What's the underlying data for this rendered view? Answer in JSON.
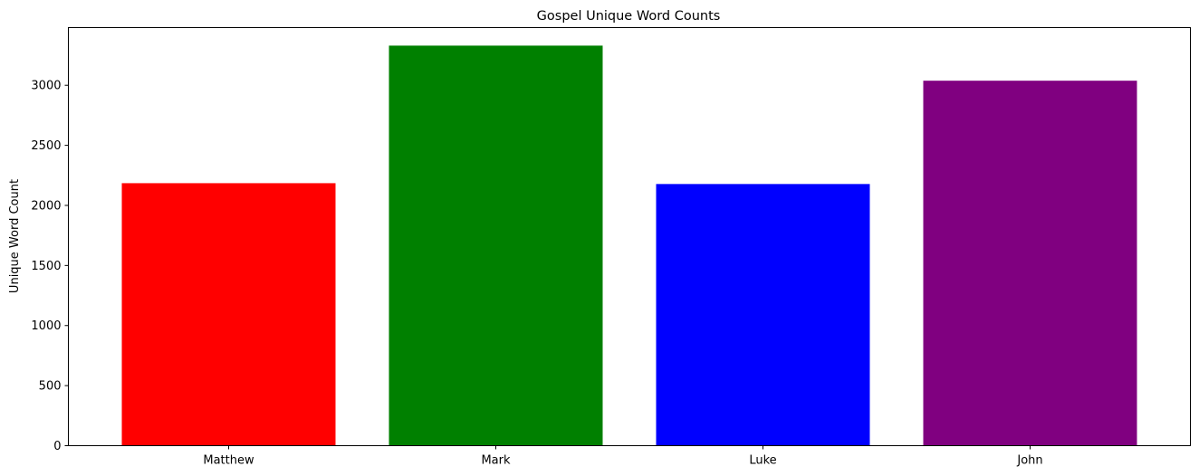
{
  "chart_data": {
    "type": "bar",
    "title": "Gospel Unique Word Counts",
    "xlabel": "",
    "ylabel": "Unique Word Count",
    "categories": [
      "Matthew",
      "Mark",
      "Luke",
      "John"
    ],
    "values": [
      2185,
      3330,
      2178,
      3038
    ],
    "colors": [
      "#ff0000",
      "#008000",
      "#0000ff",
      "#800080"
    ],
    "ylim": [
      0,
      3480
    ],
    "yticks": [
      0,
      500,
      1000,
      1500,
      2000,
      2500,
      3000
    ],
    "grid": false,
    "legend": "none"
  }
}
